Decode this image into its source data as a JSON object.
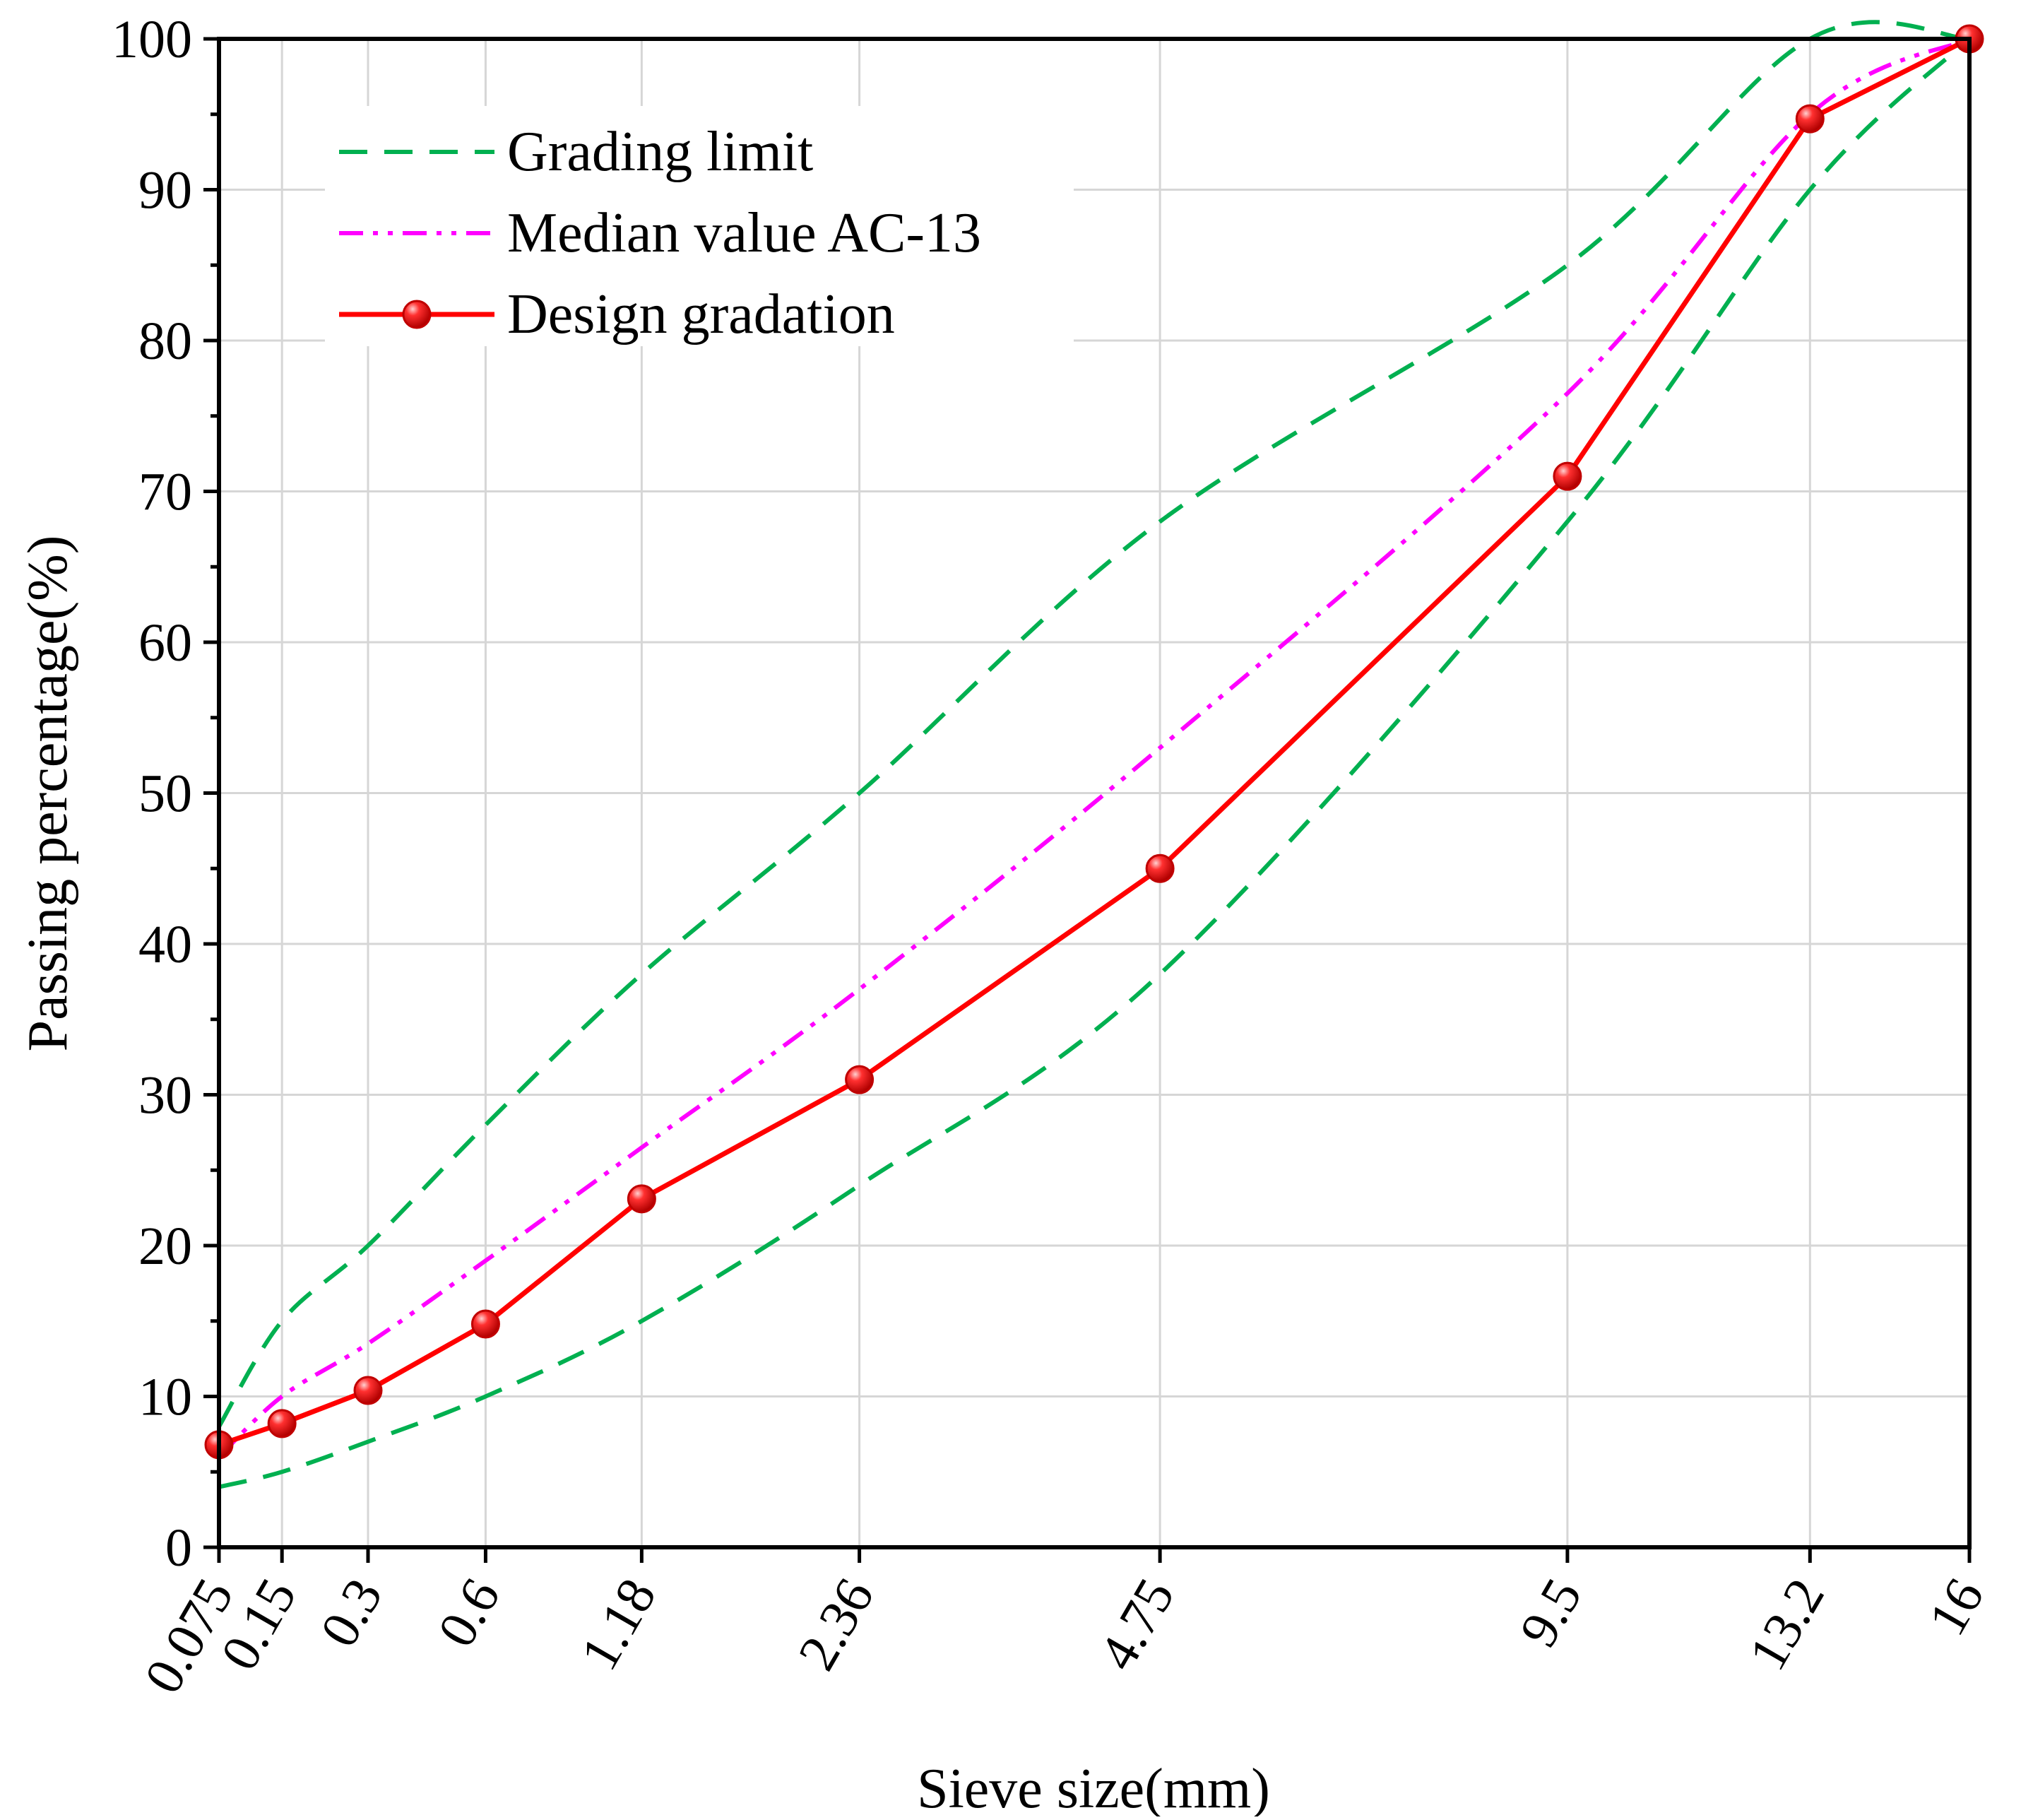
{
  "chart_data": {
    "type": "line",
    "title": "",
    "xlabel": "Sieve size(mm)",
    "ylabel": "Passing percentage(%)",
    "x_scale": "gradation-power-0.45",
    "categories": [
      "0.075",
      "0.15",
      "0.3",
      "0.6",
      "1.18",
      "2.36",
      "4.75",
      "9.5",
      "13.2",
      "16"
    ],
    "x": [
      0.075,
      0.15,
      0.3,
      0.6,
      1.18,
      2.36,
      4.75,
      9.5,
      13.2,
      16
    ],
    "ylim": [
      0,
      100
    ],
    "yticks": [
      0,
      10,
      20,
      30,
      40,
      50,
      60,
      70,
      80,
      90,
      100
    ],
    "grid": true,
    "legend_position": "top-left",
    "series": [
      {
        "name": "Grading limit",
        "role": "upper",
        "style": "dashed",
        "color": "#00b050",
        "show_in_legend": true,
        "values": [
          8,
          15,
          20,
          28,
          38,
          50,
          68,
          85,
          100,
          100
        ]
      },
      {
        "name": "Grading limit",
        "role": "lower",
        "style": "dashed",
        "color": "#00b050",
        "show_in_legend": false,
        "values": [
          4,
          5,
          7,
          10,
          15,
          24,
          38,
          68,
          90,
          100
        ]
      },
      {
        "name": "Median value AC-13",
        "style": "dash-dot-dot",
        "color": "#ff00ff",
        "show_in_legend": true,
        "values": [
          6,
          10,
          13.5,
          19,
          26.5,
          37,
          53,
          76.5,
          95,
          100
        ]
      },
      {
        "name": "Design gradation",
        "style": "solid-markers",
        "color": "#ff0000",
        "show_in_legend": true,
        "values": [
          6.8,
          8.2,
          10.4,
          14.8,
          23.1,
          31,
          45,
          71,
          94.7,
          100
        ]
      }
    ]
  }
}
